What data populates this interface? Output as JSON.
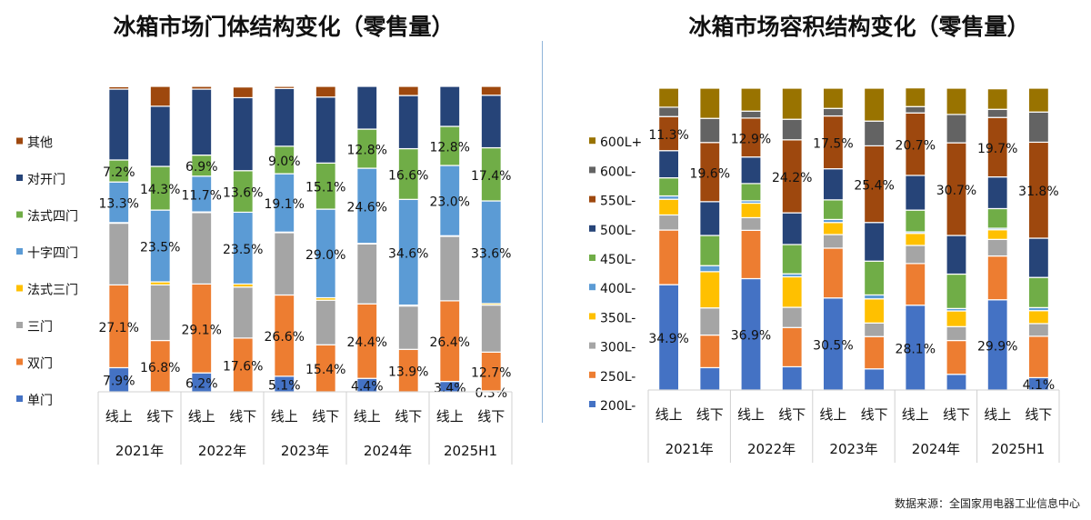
{
  "chart_data": [
    {
      "type": "stacked-bar-100",
      "title": "冰箱市场门体结构变化（零售量）",
      "categories": [
        "线上",
        "线下",
        "线上",
        "线下",
        "线上",
        "线下",
        "线上",
        "线下",
        "线上",
        "线下"
      ],
      "groups": [
        "2021年",
        "2022年",
        "2023年",
        "2024年",
        "2025H1"
      ],
      "ylim": [
        0,
        100
      ],
      "grid": false,
      "legend": "left",
      "series": [
        {
          "name": "单门",
          "color": "#4472C4",
          "values": [
            7.9,
            0,
            6.2,
            0,
            5.1,
            0,
            4.4,
            0,
            3.4,
            0.3
          ],
          "labels": [
            "7.9%",
            null,
            "6.2%",
            null,
            "5.1%",
            null,
            "4.4%",
            null,
            "3.4%",
            "0.3%"
          ]
        },
        {
          "name": "双门",
          "color": "#ED7D31",
          "values": [
            27.1,
            16.8,
            29.1,
            17.6,
            26.6,
            15.4,
            24.4,
            13.9,
            26.4,
            12.7
          ],
          "labels": [
            "27.1%",
            "16.8%",
            "29.1%",
            "17.6%",
            "26.6%",
            "15.4%",
            "24.4%",
            "13.9%",
            "26.4%",
            "12.7%"
          ]
        },
        {
          "name": "三门",
          "color": "#A5A5A5",
          "values": [
            20.2,
            18.2,
            23.4,
            16.7,
            20.4,
            14.6,
            19.6,
            14.2,
            21.1,
            15.4
          ],
          "labels": [
            null,
            null,
            null,
            null,
            null,
            null,
            null,
            null,
            null,
            null
          ]
        },
        {
          "name": "法式三门",
          "color": "#FFC000",
          "values": [
            0.2,
            1.0,
            0.2,
            1.0,
            0.2,
            0.8,
            0.2,
            0.3,
            0.2,
            0.5
          ],
          "labels": [
            null,
            null,
            null,
            null,
            null,
            null,
            null,
            null,
            null,
            null
          ]
        },
        {
          "name": "十字四门",
          "color": "#5B9BD5",
          "values": [
            13.3,
            23.5,
            11.7,
            23.5,
            19.1,
            29.0,
            24.6,
            34.6,
            23.0,
            33.6
          ],
          "labels": [
            "13.3%",
            "23.5%",
            "11.7%",
            "23.5%",
            "19.1%",
            "29.0%",
            "24.6%",
            "34.6%",
            "23.0%",
            "33.6%"
          ]
        },
        {
          "name": "法式四门",
          "color": "#70AD47",
          "values": [
            7.2,
            14.3,
            6.9,
            13.6,
            9.0,
            15.1,
            12.8,
            16.6,
            12.8,
            17.4
          ],
          "labels": [
            "7.2%",
            "14.3%",
            "6.9%",
            "13.6%",
            "9.0%",
            "15.1%",
            "12.8%",
            "16.6%",
            "12.8%",
            "17.4%"
          ]
        },
        {
          "name": "对开门",
          "color": "#264478",
          "values": [
            23.2,
            19.7,
            21.6,
            23.9,
            18.9,
            21.6,
            14.0,
            17.4,
            13.1,
            17.2
          ],
          "labels": [
            null,
            null,
            null,
            null,
            null,
            null,
            null,
            null,
            null,
            null
          ]
        },
        {
          "name": "其他",
          "color": "#9E480E",
          "values": [
            0.8,
            6.5,
            0.9,
            3.5,
            0.7,
            3.5,
            0,
            3.0,
            0,
            2.9
          ],
          "labels": [
            null,
            null,
            null,
            null,
            null,
            null,
            null,
            null,
            null,
            null
          ]
        }
      ]
    },
    {
      "type": "stacked-bar-100",
      "title": "冰箱市场容积结构变化（零售量）",
      "categories": [
        "线上",
        "线下",
        "线上",
        "线下",
        "线上",
        "线下",
        "线上",
        "线下",
        "线上",
        "线下"
      ],
      "groups": [
        "2021年",
        "2022年",
        "2023年",
        "2024年",
        "2025H1"
      ],
      "ylim": [
        0,
        100
      ],
      "grid": false,
      "legend": "left",
      "series": [
        {
          "name": "200L-",
          "color": "#4472C4",
          "values": [
            34.9,
            7.4,
            36.9,
            7.7,
            30.5,
            7.0,
            28.1,
            5.2,
            29.9,
            4.1
          ],
          "labels": [
            "34.9%",
            null,
            "36.9%",
            null,
            "30.5%",
            null,
            "28.1%",
            null,
            "29.9%",
            "4.1%"
          ]
        },
        {
          "name": "250L-",
          "color": "#ED7D31",
          "values": [
            18.1,
            10.8,
            16.0,
            13.0,
            16.5,
            10.7,
            13.8,
            11.2,
            14.5,
            13.7
          ],
          "labels": [
            null,
            null,
            null,
            null,
            null,
            null,
            null,
            null,
            null,
            null
          ]
        },
        {
          "name": "300L-",
          "color": "#A5A5A5",
          "values": [
            5.0,
            9.0,
            4.2,
            6.7,
            4.5,
            4.5,
            6.0,
            4.6,
            5.5,
            4.2
          ],
          "labels": [
            null,
            null,
            null,
            null,
            null,
            null,
            null,
            null,
            null,
            null
          ]
        },
        {
          "name": "350L-",
          "color": "#FFC000",
          "values": [
            5.2,
            12.0,
            4.8,
            10.1,
            4.0,
            8.0,
            4.0,
            5.2,
            3.2,
            4.3
          ],
          "labels": [
            null,
            null,
            null,
            null,
            null,
            null,
            null,
            null,
            null,
            null
          ]
        },
        {
          "name": "400L-",
          "color": "#5B9BD5",
          "values": [
            1.1,
            2.0,
            0.8,
            1.0,
            1.0,
            1.3,
            0.5,
            0.8,
            0.5,
            1.0
          ],
          "labels": [
            null,
            null,
            null,
            null,
            null,
            null,
            null,
            null,
            null,
            null
          ]
        },
        {
          "name": "450L-",
          "color": "#70AD47",
          "values": [
            6.0,
            10.0,
            5.7,
            9.7,
            6.5,
            11.2,
            7.2,
            11.4,
            6.5,
            10.0
          ],
          "labels": [
            null,
            null,
            null,
            null,
            null,
            null,
            null,
            null,
            null,
            null
          ]
        },
        {
          "name": "500L-",
          "color": "#264478",
          "values": [
            9.0,
            11.2,
            8.8,
            10.5,
            10.3,
            12.8,
            11.5,
            12.8,
            10.5,
            13.0
          ],
          "labels": [
            null,
            null,
            null,
            null,
            null,
            null,
            null,
            null,
            null,
            null
          ]
        },
        {
          "name": "550L-",
          "color": "#9E480E",
          "values": [
            11.3,
            19.6,
            12.9,
            24.2,
            17.5,
            25.4,
            20.7,
            30.7,
            19.7,
            31.8
          ],
          "labels": [
            "11.3%",
            "19.6%",
            "12.9%",
            "24.2%",
            "17.5%",
            "25.4%",
            "20.7%",
            "30.7%",
            "19.7%",
            "31.8%"
          ]
        },
        {
          "name": "600L-",
          "color": "#636363",
          "values": [
            3.1,
            8.0,
            2.3,
            6.8,
            2.5,
            8.2,
            2.1,
            9.4,
            2.7,
            10.0
          ],
          "labels": [
            null,
            null,
            null,
            null,
            null,
            null,
            null,
            null,
            null,
            null
          ]
        },
        {
          "name": "600L+",
          "color": "#997300",
          "values": [
            6.3,
            10.0,
            7.6,
            10.3,
            6.7,
            10.9,
            6.2,
            8.7,
            6.8,
            7.9
          ],
          "labels": [
            null,
            null,
            null,
            null,
            null,
            null,
            null,
            null,
            null,
            null
          ]
        }
      ]
    }
  ],
  "source": "数据来源：全国家用电器工业信息中心"
}
